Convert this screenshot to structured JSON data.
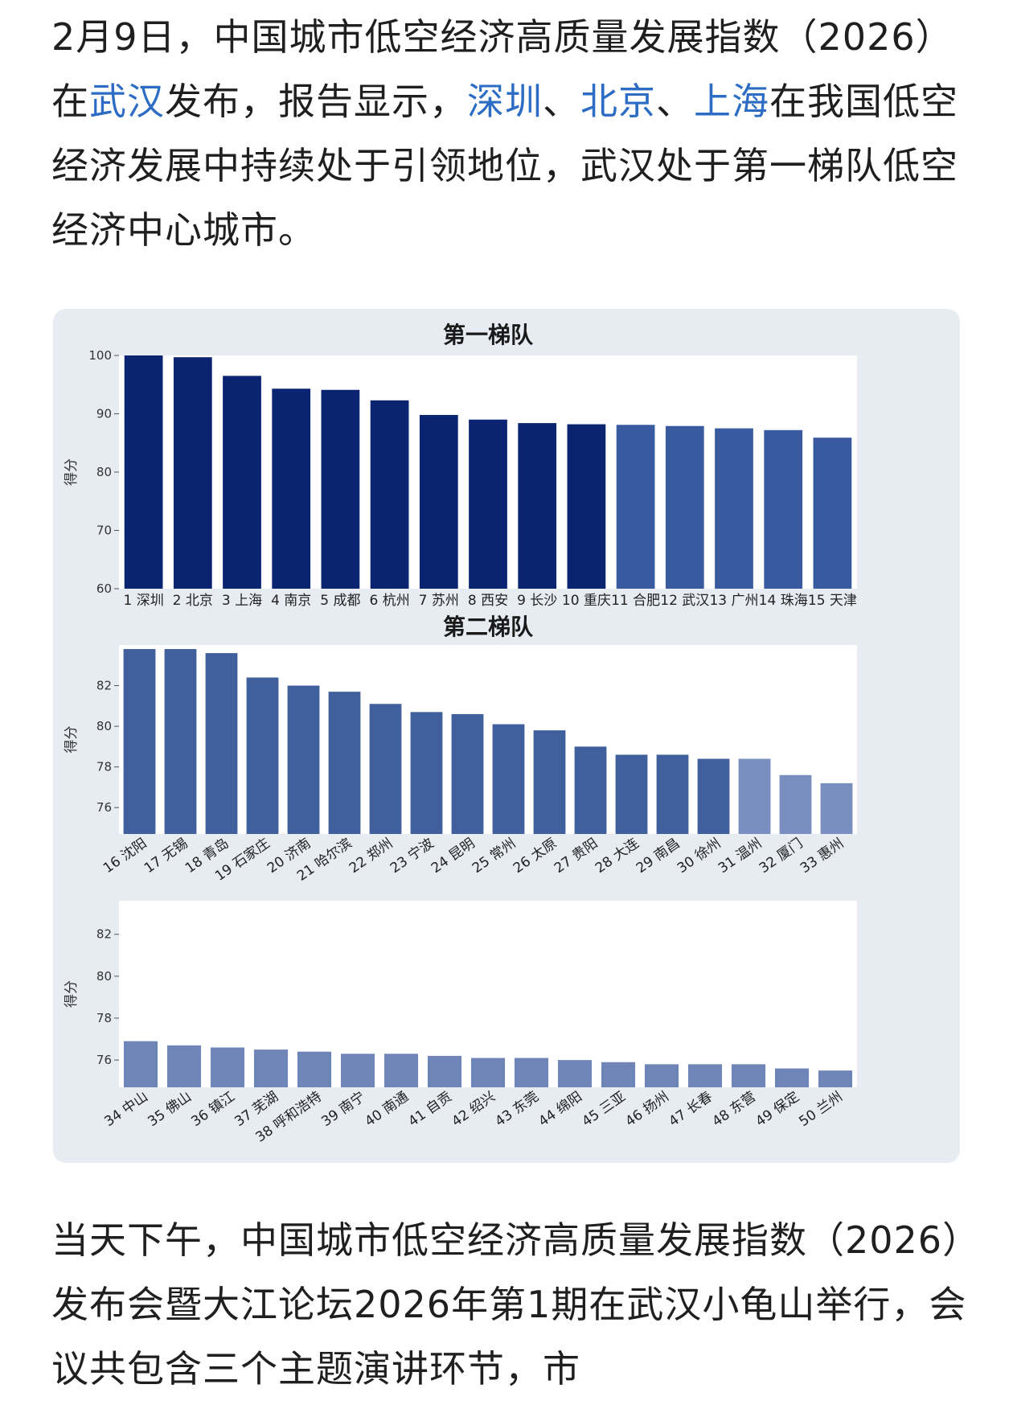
{
  "paragraph1": [
    {
      "text": "2月9日，中国城市低空经济高质量发展指数（2026）在",
      "link": false
    },
    {
      "text": "武汉",
      "link": true
    },
    {
      "text": "发布，报告显示，",
      "link": false
    },
    {
      "text": "深圳",
      "link": true
    },
    {
      "text": "、",
      "link": false
    },
    {
      "text": "北京",
      "link": true
    },
    {
      "text": "、",
      "link": false
    },
    {
      "text": "上海",
      "link": true
    },
    {
      "text": "在我国低空经济发展中持续处于引领地位，武汉处于第一梯队低空经济中心城市。",
      "link": false
    }
  ],
  "paragraph2": "当天下午，中国城市低空经济高质量发展指数（2026）发布会暨大江论坛2026年第1期在武汉小龟山举行，会议共包含三个主题演讲环节，市",
  "colors": {
    "link": "#2c6cc4",
    "dark_navy": "#0a2472",
    "mid_blue": "#3a5aa0",
    "steel_blue": "#3f5f9d",
    "light_blue": "#7a8fbf",
    "pale_blue": "#6f85b8"
  },
  "chart_data": [
    {
      "type": "bar",
      "title": "第一梯队",
      "ylabel": "得分",
      "ylim": [
        60,
        100
      ],
      "yticks": [
        60,
        70,
        80,
        90,
        100
      ],
      "categories": [
        "1 深圳",
        "2 北京",
        "3 上海",
        "4 南京",
        "5 成都",
        "6 杭州",
        "7 苏州",
        "8 西安",
        "9 长沙",
        "10 重庆",
        "11 合肥",
        "12 武汉",
        "13 广州",
        "14 珠海",
        "15 天津"
      ],
      "values": [
        100,
        99.7,
        96.5,
        94.3,
        94.1,
        92.3,
        89.8,
        89.0,
        88.4,
        88.2,
        88.1,
        87.9,
        87.5,
        87.2,
        85.9
      ],
      "colors": [
        "#0a2472",
        "#0a2472",
        "#0a2472",
        "#0a2472",
        "#0a2472",
        "#0a2472",
        "#0a2472",
        "#0a2472",
        "#0a2472",
        "#0a2472",
        "#3a5aa0",
        "#3a5aa0",
        "#3a5aa0",
        "#3a5aa0",
        "#3a5aa0"
      ],
      "label_rotation": 0
    },
    {
      "type": "bar",
      "title": "第二梯队",
      "ylabel": "得分",
      "ylim": [
        74.7,
        84
      ],
      "yticks": [
        76,
        78,
        80,
        82
      ],
      "categories": [
        "16 沈阳",
        "17 无锡",
        "18 青岛",
        "19 石家庄",
        "20 济南",
        "21 哈尔滨",
        "22 郑州",
        "23 宁波",
        "24 昆明",
        "25 常州",
        "26 太原",
        "27 贵阳",
        "28 大连",
        "29 南昌",
        "30 徐州",
        "31 温州",
        "32 厦门",
        "33 惠州"
      ],
      "values": [
        83.8,
        83.8,
        83.6,
        82.4,
        82.0,
        81.7,
        81.1,
        80.7,
        80.6,
        80.1,
        79.8,
        79.0,
        78.6,
        78.6,
        78.4,
        78.4,
        77.6,
        77.2
      ],
      "colors": [
        "#3f5f9d",
        "#3f5f9d",
        "#3f5f9d",
        "#3f5f9d",
        "#3f5f9d",
        "#3f5f9d",
        "#3f5f9d",
        "#3f5f9d",
        "#3f5f9d",
        "#3f5f9d",
        "#3f5f9d",
        "#3f5f9d",
        "#3f5f9d",
        "#3f5f9d",
        "#3f5f9d",
        "#7a8fbf",
        "#7a8fbf",
        "#7a8fbf"
      ],
      "label_rotation": -35
    },
    {
      "type": "bar",
      "title": "",
      "ylabel": "得分",
      "ylim": [
        74.7,
        83.6
      ],
      "yticks": [
        76,
        78,
        80,
        82
      ],
      "categories": [
        "34 中山",
        "35 佛山",
        "36 镇江",
        "37 芜湖",
        "38 呼和浩特",
        "39 南宁",
        "40 南通",
        "41 自贡",
        "42 绍兴",
        "43 东莞",
        "44 绵阳",
        "45 三亚",
        "46 扬州",
        "47 长春",
        "48 东营",
        "49 保定",
        "50 兰州"
      ],
      "values": [
        76.9,
        76.7,
        76.6,
        76.5,
        76.4,
        76.3,
        76.3,
        76.2,
        76.1,
        76.1,
        76.0,
        75.9,
        75.8,
        75.8,
        75.8,
        75.6,
        75.5
      ],
      "colors": [
        "#6f85b8",
        "#6f85b8",
        "#6f85b8",
        "#6f85b8",
        "#6f85b8",
        "#6f85b8",
        "#6f85b8",
        "#6f85b8",
        "#6f85b8",
        "#6f85b8",
        "#6f85b8",
        "#6f85b8",
        "#6f85b8",
        "#6f85b8",
        "#6f85b8",
        "#6f85b8",
        "#6f85b8"
      ],
      "label_rotation": -35
    }
  ]
}
